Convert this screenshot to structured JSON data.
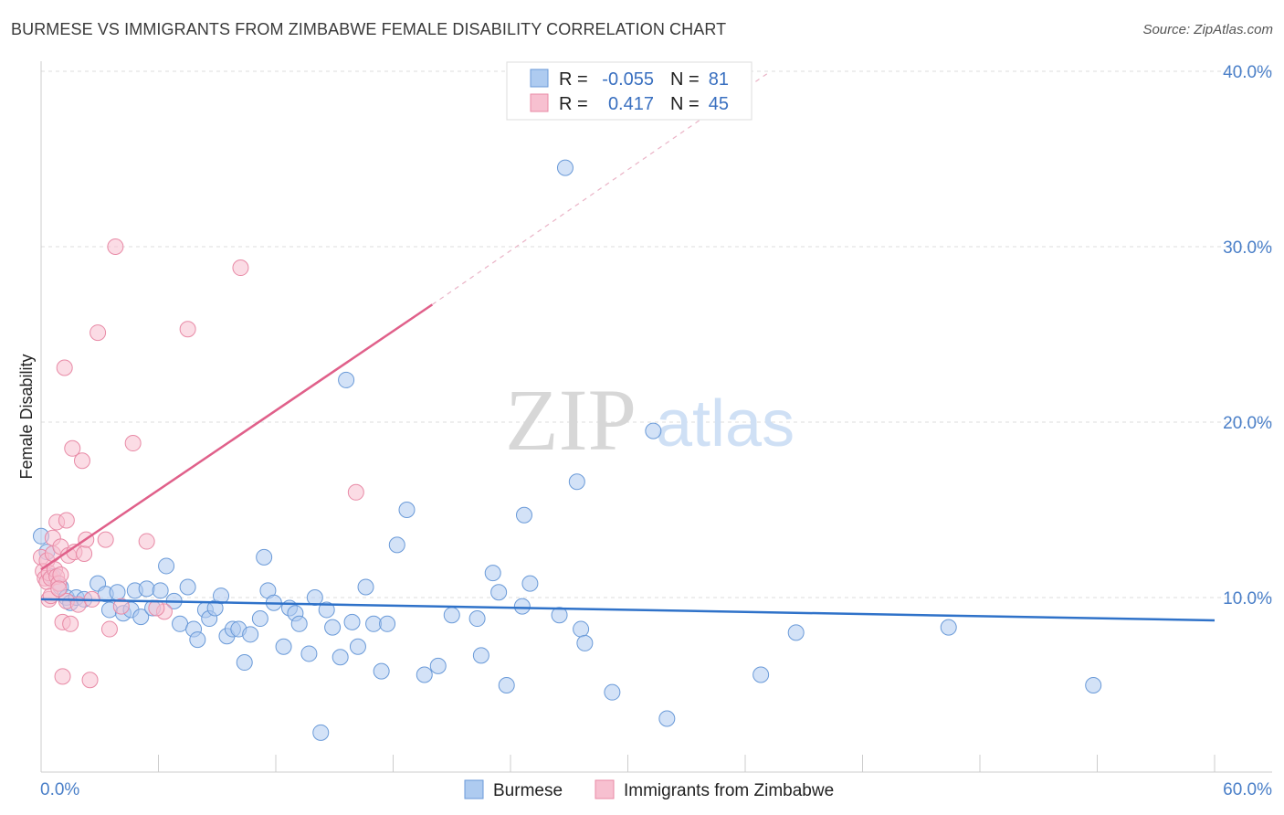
{
  "title": "BURMESE VS IMMIGRANTS FROM ZIMBABWE FEMALE DISABILITY CORRELATION CHART",
  "source": "Source: ZipAtlas.com",
  "watermark": {
    "zip": "ZIP",
    "atlas": "atlas"
  },
  "colors": {
    "blue_fill": "#aecbf0",
    "blue_stroke": "#6a9ad8",
    "blue_line": "#2f72c9",
    "pink_fill": "#f7c0d0",
    "pink_stroke": "#e88aa6",
    "pink_line": "#e0608a",
    "grid": "#dddddd",
    "tick_label": "#4a7fc8"
  },
  "legend": {
    "rows": [
      {
        "r_label": "R =",
        "r_value": "-0.055",
        "n_label": "N =",
        "n_value": "81"
      },
      {
        "r_label": "R =",
        "r_value": "0.417",
        "n_label": "N =",
        "n_value": "45"
      }
    ]
  },
  "chart_data": {
    "type": "scatter",
    "title": "BURMESE VS IMMIGRANTS FROM ZIMBABWE FEMALE DISABILITY CORRELATION CHART",
    "xlabel": "",
    "ylabel": "Female Disability",
    "xlim": [
      0,
      60
    ],
    "ylim": [
      0,
      40
    ],
    "x_tick_labels": [
      "0.0%",
      "60.0%"
    ],
    "y_ticks": [
      10,
      20,
      30,
      40
    ],
    "y_tick_labels": [
      "10.0%",
      "20.0%",
      "30.0%",
      "40.0%"
    ],
    "grid": true,
    "legend_position": "bottom",
    "series": [
      {
        "name": "Burmese",
        "R": -0.055,
        "N": 81,
        "trend": {
          "x0": 0,
          "y0": 9.9,
          "x1": 60,
          "y1": 8.7
        },
        "points": [
          [
            0,
            13.5
          ],
          [
            0.3,
            12.6
          ],
          [
            0.6,
            11.2
          ],
          [
            1,
            10.6
          ],
          [
            1.3,
            10
          ],
          [
            1.5,
            9.7
          ],
          [
            1.8,
            10
          ],
          [
            2.2,
            9.9
          ],
          [
            2.9,
            10.8
          ],
          [
            3.3,
            10.2
          ],
          [
            3.5,
            9.3
          ],
          [
            3.9,
            10.3
          ],
          [
            4.2,
            9.1
          ],
          [
            4.6,
            9.3
          ],
          [
            4.8,
            10.4
          ],
          [
            5.1,
            8.9
          ],
          [
            5.4,
            10.5
          ],
          [
            5.7,
            9.4
          ],
          [
            6.1,
            10.4
          ],
          [
            6.4,
            11.8
          ],
          [
            6.8,
            9.8
          ],
          [
            7.1,
            8.5
          ],
          [
            7.5,
            10.6
          ],
          [
            7.8,
            8.2
          ],
          [
            8,
            7.6
          ],
          [
            8.4,
            9.3
          ],
          [
            8.6,
            8.8
          ],
          [
            8.9,
            9.4
          ],
          [
            9.2,
            10.1
          ],
          [
            9.5,
            7.8
          ],
          [
            9.8,
            8.2
          ],
          [
            10.1,
            8.2
          ],
          [
            10.4,
            6.3
          ],
          [
            10.7,
            7.9
          ],
          [
            11.2,
            8.8
          ],
          [
            11.4,
            12.3
          ],
          [
            11.6,
            10.4
          ],
          [
            11.9,
            9.7
          ],
          [
            12.4,
            7.2
          ],
          [
            12.7,
            9.4
          ],
          [
            13,
            9.1
          ],
          [
            13.2,
            8.5
          ],
          [
            13.7,
            6.8
          ],
          [
            14,
            10
          ],
          [
            14.3,
            2.3
          ],
          [
            14.6,
            9.3
          ],
          [
            14.9,
            8.3
          ],
          [
            15.3,
            6.6
          ],
          [
            15.6,
            22.4
          ],
          [
            15.9,
            8.6
          ],
          [
            16.2,
            7.2
          ],
          [
            16.6,
            10.6
          ],
          [
            17,
            8.5
          ],
          [
            17.4,
            5.8
          ],
          [
            17.7,
            8.5
          ],
          [
            18.2,
            13
          ],
          [
            18.7,
            15
          ],
          [
            19.6,
            5.6
          ],
          [
            20.3,
            6.1
          ],
          [
            21,
            9
          ],
          [
            22.3,
            8.8
          ],
          [
            22.5,
            6.7
          ],
          [
            23.1,
            11.4
          ],
          [
            23.4,
            10.3
          ],
          [
            23.8,
            5
          ],
          [
            24.6,
            9.5
          ],
          [
            24.7,
            14.7
          ],
          [
            25,
            10.8
          ],
          [
            26.5,
            9
          ],
          [
            26.8,
            34.5
          ],
          [
            27.4,
            16.6
          ],
          [
            27.6,
            8.2
          ],
          [
            27.8,
            7.4
          ],
          [
            29.2,
            4.6
          ],
          [
            31.3,
            19.5
          ],
          [
            32,
            3.1
          ],
          [
            36.8,
            5.6
          ],
          [
            38.6,
            8
          ],
          [
            46.4,
            8.3
          ],
          [
            53.8,
            5
          ]
        ]
      },
      {
        "name": "Immigrants from Zimbabwe",
        "R": 0.417,
        "N": 45,
        "trend": {
          "x0": 0,
          "y0": 11.6,
          "x1": 20,
          "y1": 26.7,
          "dash_to_x": 37.3,
          "dash_to_y": 40
        },
        "points": [
          [
            0,
            12.3
          ],
          [
            0.1,
            11.5
          ],
          [
            0.2,
            11.1
          ],
          [
            0.3,
            10.9
          ],
          [
            0.3,
            12.1
          ],
          [
            0.4,
            9.9
          ],
          [
            0.4,
            11.4
          ],
          [
            0.5,
            10.1
          ],
          [
            0.5,
            11.1
          ],
          [
            0.6,
            12.5
          ],
          [
            0.6,
            13.4
          ],
          [
            0.7,
            11.6
          ],
          [
            0.8,
            14.3
          ],
          [
            0.8,
            11.2
          ],
          [
            0.9,
            10.8
          ],
          [
            1,
            11.3
          ],
          [
            1,
            12.9
          ],
          [
            1.1,
            8.6
          ],
          [
            1.1,
            5.5
          ],
          [
            1.2,
            23.1
          ],
          [
            1.3,
            14.4
          ],
          [
            1.3,
            9.8
          ],
          [
            1.4,
            12.4
          ],
          [
            1.5,
            8.5
          ],
          [
            1.6,
            18.5
          ],
          [
            1.7,
            12.6
          ],
          [
            1.9,
            9.6
          ],
          [
            2.1,
            17.8
          ],
          [
            2.2,
            12.5
          ],
          [
            2.3,
            13.3
          ],
          [
            2.5,
            5.3
          ],
          [
            2.6,
            9.9
          ],
          [
            2.9,
            25.1
          ],
          [
            3.3,
            13.3
          ],
          [
            3.5,
            8.2
          ],
          [
            3.8,
            30
          ],
          [
            4.1,
            9.5
          ],
          [
            4.7,
            18.8
          ],
          [
            5.4,
            13.2
          ],
          [
            6.3,
            9.2
          ],
          [
            7.5,
            25.3
          ],
          [
            10.2,
            28.8
          ],
          [
            16.1,
            16
          ],
          [
            5.9,
            9.4
          ],
          [
            0.9,
            10.5
          ]
        ]
      }
    ]
  }
}
